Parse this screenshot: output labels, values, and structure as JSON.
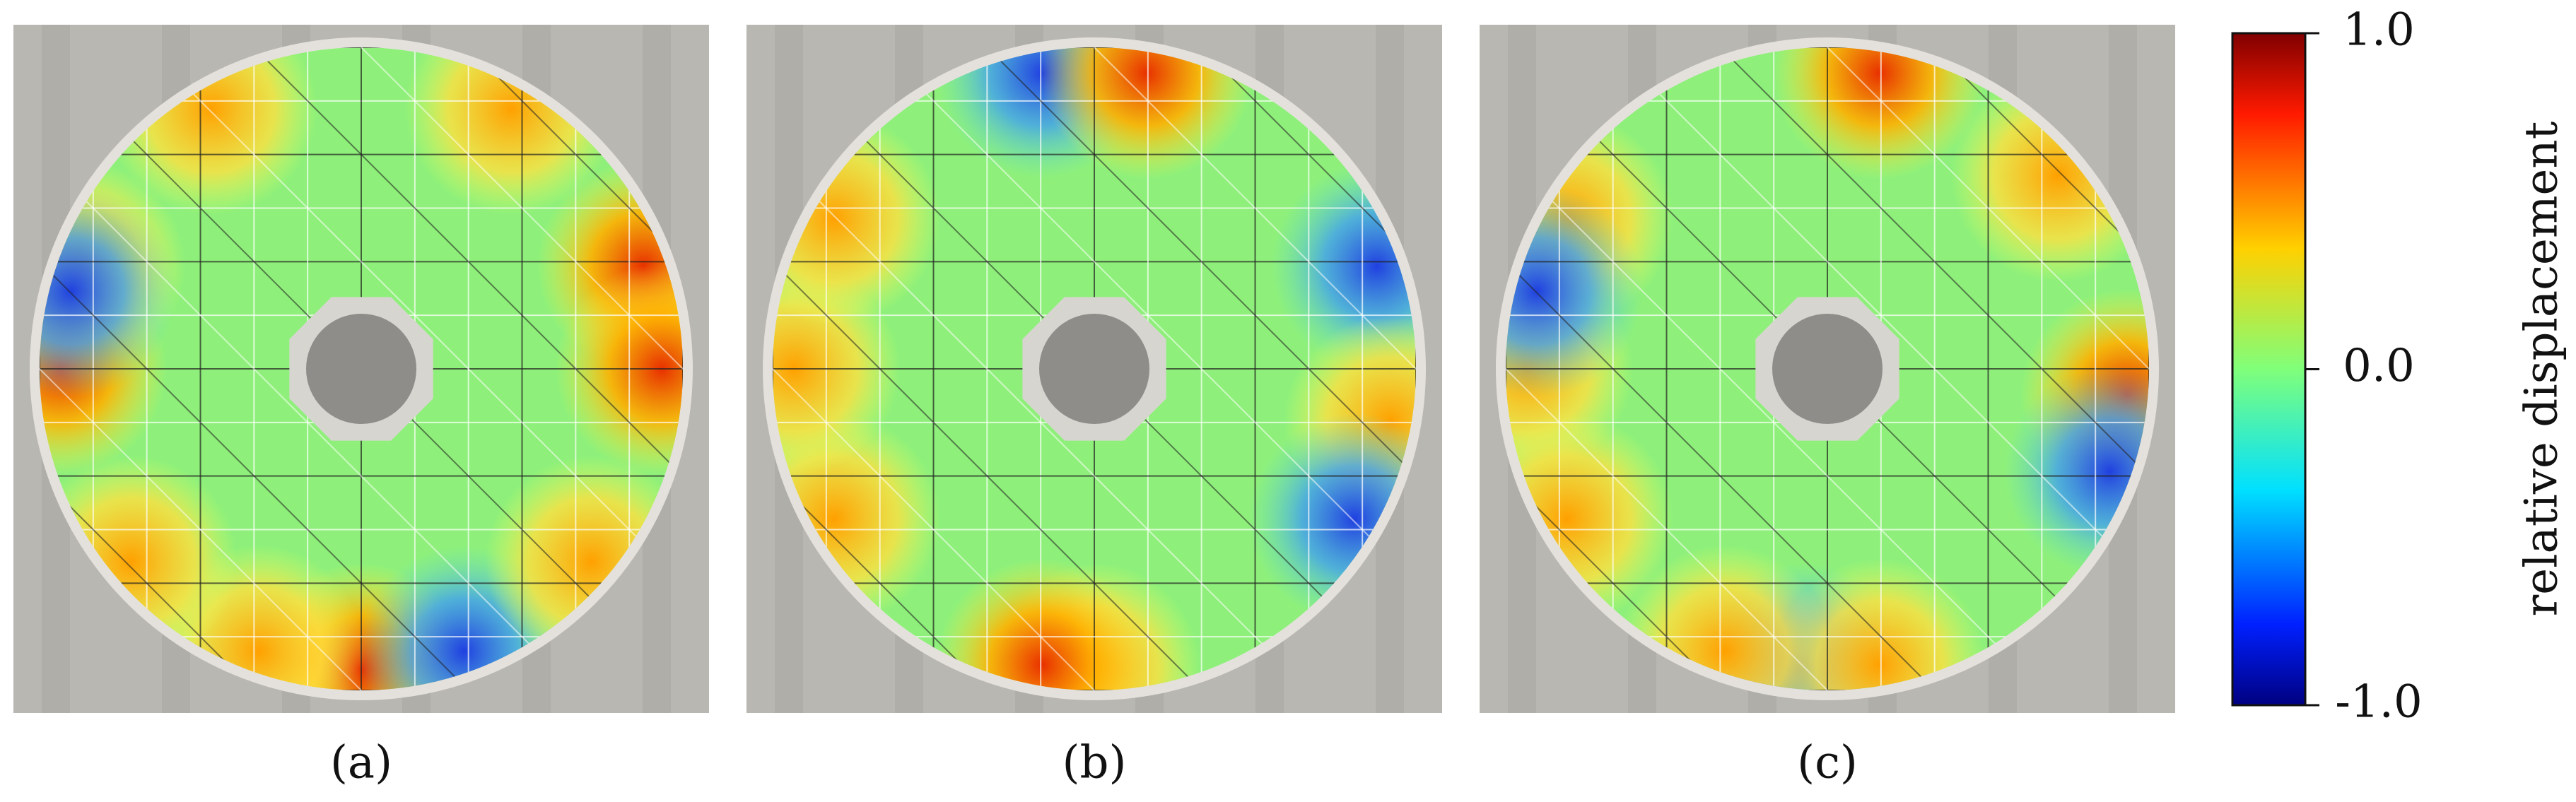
{
  "panels": [
    {
      "label": "(a)"
    },
    {
      "label": "(b)"
    },
    {
      "label": "(c)"
    }
  ],
  "colorbar": {
    "label": "relative displacement",
    "lim": [
      -1,
      1
    ],
    "ticks": [
      {
        "value": 1,
        "label": "1.0"
      },
      {
        "value": 0,
        "label": "0.0"
      },
      {
        "value": -1,
        "label": "-1.0"
      }
    ]
  }
}
